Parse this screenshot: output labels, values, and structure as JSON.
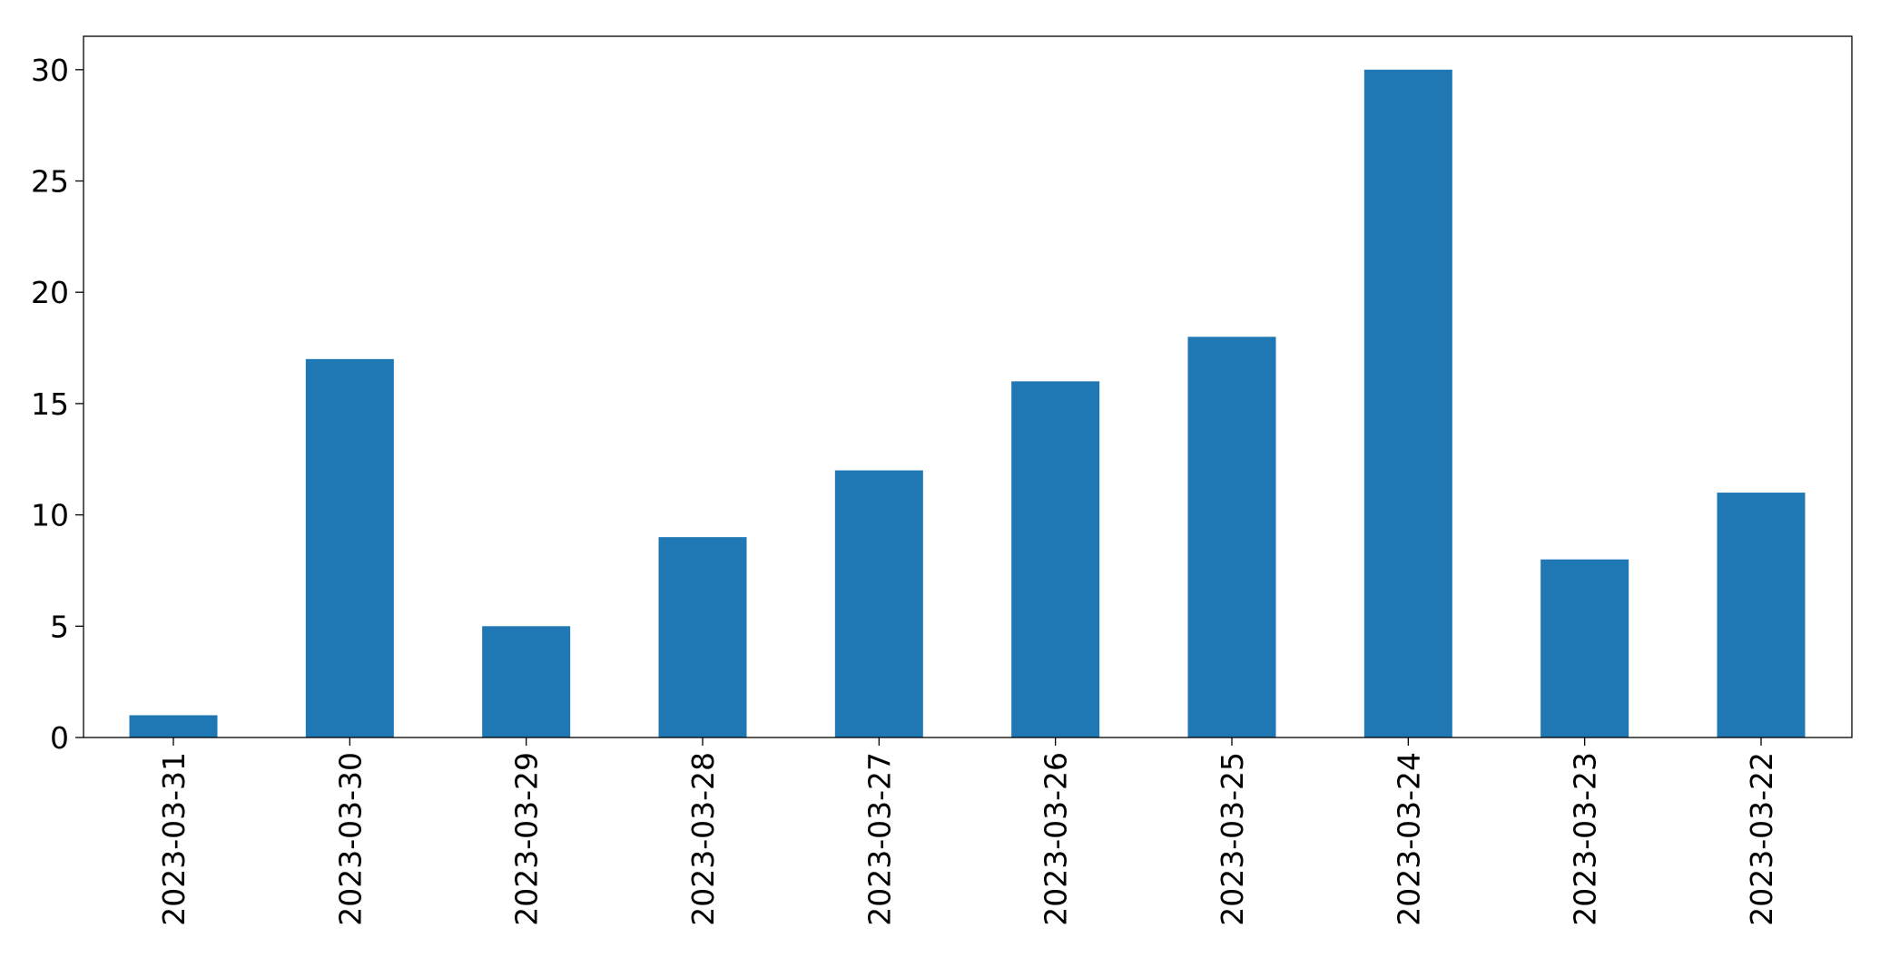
{
  "colors": {
    "bar": "#1f77b4",
    "axis": "#000000",
    "background": "#ffffff"
  },
  "chart_data": {
    "type": "bar",
    "title": "",
    "xlabel": "",
    "ylabel": "",
    "categories": [
      "2023-03-31",
      "2023-03-30",
      "2023-03-29",
      "2023-03-28",
      "2023-03-27",
      "2023-03-26",
      "2023-03-25",
      "2023-03-24",
      "2023-03-23",
      "2023-03-22"
    ],
    "values": [
      1,
      17,
      5,
      9,
      12,
      16,
      18,
      30,
      8,
      11
    ],
    "ylim": [
      0,
      31.5
    ],
    "yticks": [
      "0",
      "5",
      "10",
      "15",
      "20",
      "25",
      "30"
    ],
    "grid": false,
    "legend": "none",
    "xtick_rotation": "vertical"
  }
}
